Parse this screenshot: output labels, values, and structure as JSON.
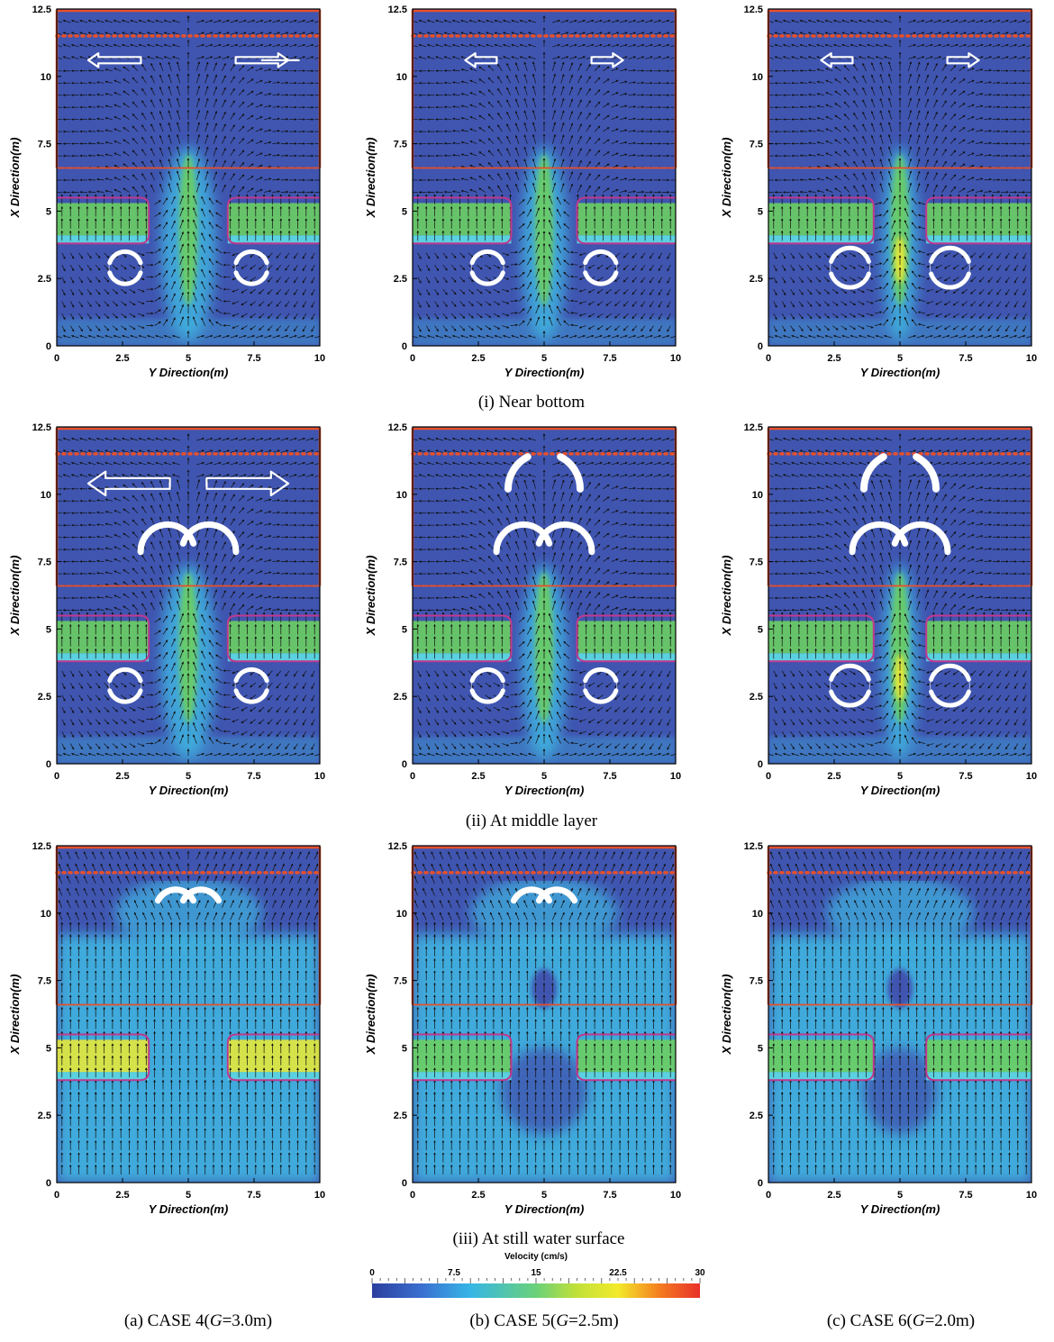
{
  "chart_data": {
    "type": "heatmap",
    "variable": "Velocity (cm/s)",
    "x_axis": {
      "label": "Y Direction(m)",
      "range": [
        0,
        10
      ],
      "ticks": [
        "0",
        "2.5",
        "5",
        "7.5",
        "10"
      ]
    },
    "y_axis": {
      "label": "X Direction(m)",
      "range": [
        0,
        12.5
      ],
      "ticks": [
        "0",
        "2.5",
        "5",
        "7.5",
        "10",
        "12.5"
      ]
    },
    "colorbar": {
      "label": "Velocity (cm/s)",
      "range": [
        0,
        30
      ],
      "ticks": [
        "0",
        "7.5",
        "15",
        "22.5",
        "30"
      ],
      "colors": [
        "#2c3f9e",
        "#3a6fd0",
        "#36b6e6",
        "#6ad17a",
        "#bfe03a",
        "#f3ea2a",
        "#f47a20",
        "#e8302a"
      ]
    },
    "rows": [
      {
        "caption": "(i) Near bottom"
      },
      {
        "caption": "(ii) At middle layer"
      },
      {
        "caption": "(iii) At still water surface"
      }
    ],
    "columns": [
      {
        "prefix": "(a) CASE 4(",
        "var": "G",
        "suffix": "=3.0m)",
        "gap_m": 3.0
      },
      {
        "prefix": "(b) CASE 5(",
        "var": "G",
        "suffix": "=2.5m)",
        "gap_m": 2.5
      },
      {
        "prefix": "(c) CASE 6(",
        "var": "G",
        "suffix": "=2.0m)",
        "gap_m": 2.0
      }
    ],
    "structures": {
      "breakwater_x_range_m": [
        3.8,
        5.5
      ],
      "shoreline_x_m": 6.6,
      "wave_generator_x_m": 11.5,
      "domain_top_x_m": 12.3
    }
  },
  "colors": {
    "field_low": "#3f55b0",
    "field_mid": "#3fb4e0",
    "field_green": "#6ccf62",
    "field_yellow": "#e6e83a",
    "outline_red": "#e8502a",
    "outline_magenta": "#c0388f",
    "vector": "#111111",
    "circulation_arrow": "#ffffff"
  }
}
